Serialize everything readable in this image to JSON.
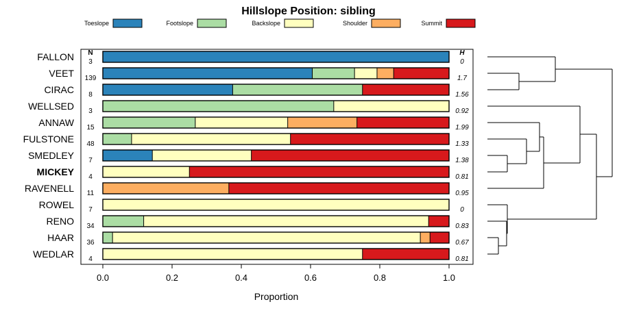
{
  "chart_data": {
    "type": "stacked-bar",
    "title": "Hillslope Position: sibling",
    "xlabel": "Proportion",
    "ylabel": "",
    "xlim": [
      0,
      1
    ],
    "xticks": [
      0.0,
      0.2,
      0.4,
      0.6,
      0.8,
      1.0
    ],
    "xtick_labels": [
      "0.0",
      "0.2",
      "0.4",
      "0.6",
      "0.8",
      "1.0"
    ],
    "n_header": "N",
    "h_header": "H",
    "legend": [
      {
        "name": "Toeslope",
        "color": "#2b83ba"
      },
      {
        "name": "Footslope",
        "color": "#abdda4"
      },
      {
        "name": "Backslope",
        "color": "#ffffbf"
      },
      {
        "name": "Shoulder",
        "color": "#fdae61"
      },
      {
        "name": "Summit",
        "color": "#d7191c"
      }
    ],
    "rows": [
      {
        "label": "FALLON",
        "n": "3",
        "h": "0",
        "bold": false,
        "values": [
          1.0,
          0,
          0,
          0,
          0
        ]
      },
      {
        "label": "VEET",
        "n": "139",
        "h": "1.7",
        "bold": false,
        "values": [
          0.605,
          0.122,
          0.065,
          0.048,
          0.16
        ]
      },
      {
        "label": "CIRAC",
        "n": "8",
        "h": "1.56",
        "bold": false,
        "values": [
          0.375,
          0.375,
          0,
          0,
          0.25
        ]
      },
      {
        "label": "WELLSED",
        "n": "3",
        "h": "0.92",
        "bold": false,
        "values": [
          0,
          0.667,
          0.333,
          0,
          0
        ]
      },
      {
        "label": "ANNAW",
        "n": "15",
        "h": "1.99",
        "bold": false,
        "values": [
          0,
          0.267,
          0.267,
          0.2,
          0.266
        ]
      },
      {
        "label": "FULSTONE",
        "n": "48",
        "h": "1.33",
        "bold": false,
        "values": [
          0,
          0.083,
          0.459,
          0,
          0.458
        ]
      },
      {
        "label": "SMEDLEY",
        "n": "7",
        "h": "1.38",
        "bold": false,
        "values": [
          0.143,
          0,
          0.286,
          0,
          0.571
        ]
      },
      {
        "label": "MICKEY",
        "n": "4",
        "h": "0.81",
        "bold": true,
        "values": [
          0,
          0,
          0.25,
          0,
          0.75
        ]
      },
      {
        "label": "RAVENELL",
        "n": "11",
        "h": "0.95",
        "bold": false,
        "values": [
          0,
          0,
          0,
          0.364,
          0.636
        ]
      },
      {
        "label": "ROWEL",
        "n": "7",
        "h": "0",
        "bold": false,
        "values": [
          0,
          0,
          1.0,
          0,
          0
        ]
      },
      {
        "label": "RENO",
        "n": "34",
        "h": "0.83",
        "bold": false,
        "values": [
          0,
          0.118,
          0.823,
          0,
          0.059
        ]
      },
      {
        "label": "HAAR",
        "n": "36",
        "h": "0.67",
        "bold": false,
        "values": [
          0,
          0.028,
          0.889,
          0.028,
          0.055
        ]
      },
      {
        "label": "WEDLAR",
        "n": "4",
        "h": "0.81",
        "bold": false,
        "values": [
          0,
          0,
          0.75,
          0,
          0.25
        ]
      }
    ],
    "dendrogram": {
      "leaf_order": [
        "FALLON",
        "VEET",
        "CIRAC",
        "WELLSED",
        "ANNAW",
        "FULSTONE",
        "SMEDLEY",
        "MICKEY",
        "RAVENELL",
        "ROWEL",
        "RENO",
        "HAAR",
        "WEDLAR"
      ],
      "merges": [
        {
          "a": "VEET",
          "b": "CIRAC",
          "height": 0.32
        },
        {
          "a": "FALLON",
          "b": "VEET+CIRAC",
          "height": 0.75
        },
        {
          "a": "SMEDLEY",
          "b": "MICKEY",
          "height": 0.2
        },
        {
          "a": "FULSTONE",
          "b": "SMEDLEY+MICKEY",
          "height": 0.33
        },
        {
          "a": "ANNAW",
          "b": "FULSTONE+SMEDLEY+MICKEY",
          "height": 0.5
        },
        {
          "a": "ANNAW+FULSTONE+SMEDLEY+MICKEY",
          "b": "RAVENELL",
          "height": 0.6
        },
        {
          "a": "WELLSED",
          "b": "ANNAW+...+RAVENELL",
          "height": 1.0
        },
        {
          "a": "HAAR",
          "b": "WEDLAR",
          "height": 0.1
        },
        {
          "a": "RENO",
          "b": "HAAR+WEDLAR",
          "height": 0.2
        },
        {
          "a": "ROWEL",
          "b": "RENO+HAAR+WEDLAR",
          "height": 0.28
        },
        {
          "a": "WELLSED+...+RAVENELL",
          "b": "ROWEL+RENO+HAAR+WEDLAR",
          "height": 0.8
        },
        {
          "a": "FALLON+VEET+CIRAC",
          "b": "rest",
          "height": 1.3
        }
      ]
    }
  }
}
